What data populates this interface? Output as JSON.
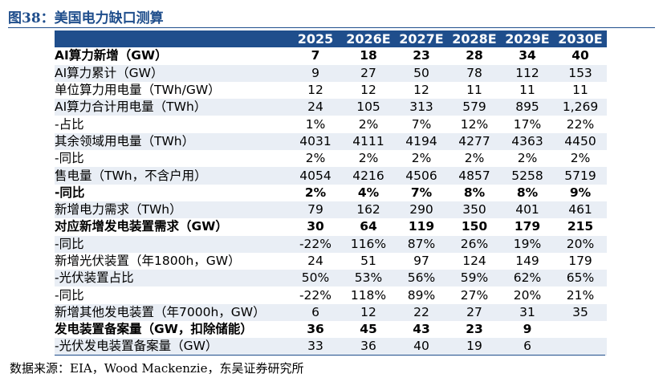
{
  "title": "图38：美国电力缺口测算",
  "years": [
    "2025",
    "2026E",
    "2027E",
    "2028E",
    "2029E",
    "2030E"
  ],
  "rows": [
    {
      "label": "AI算力新增（GW）",
      "bold": true,
      "values": [
        "7",
        "18",
        "23",
        "28",
        "34",
        "40"
      ]
    },
    {
      "label": "AI算力累计（GW）",
      "bold": false,
      "values": [
        "9",
        "27",
        "50",
        "78",
        "112",
        "153"
      ]
    },
    {
      "label": "单位算力用电量（TWh/GW）",
      "bold": false,
      "values": [
        "12",
        "12",
        "12",
        "11",
        "11",
        "11"
      ]
    },
    {
      "label": "AI算力合计用电量（TWh）",
      "bold": false,
      "values": [
        "24",
        "105",
        "313",
        "579",
        "895",
        "1,269"
      ]
    },
    {
      "label": "-占比",
      "bold": false,
      "values": [
        "1%",
        "2%",
        "7%",
        "12%",
        "17%",
        "22%"
      ]
    },
    {
      "label": "其余领域用电量（TWh）",
      "bold": false,
      "values": [
        "4031",
        "4111",
        "4194",
        "4277",
        "4363",
        "4450"
      ]
    },
    {
      "label": "-同比",
      "bold": false,
      "values": [
        "2%",
        "2%",
        "2%",
        "2%",
        "2%",
        "2%"
      ]
    },
    {
      "label": "售电量（TWh，不含户用）",
      "bold": false,
      "values": [
        "4054",
        "4216",
        "4506",
        "4857",
        "5258",
        "5719"
      ]
    },
    {
      "label": "-同比",
      "bold": true,
      "values": [
        "2%",
        "4%",
        "7%",
        "8%",
        "8%",
        "9%"
      ]
    },
    {
      "label": "新增电力需求（TWh）",
      "bold": false,
      "values": [
        "79",
        "162",
        "290",
        "350",
        "401",
        "461"
      ]
    },
    {
      "label": "对应新增发电装置需求（GW）",
      "bold": true,
      "values": [
        "30",
        "64",
        "119",
        "150",
        "179",
        "215"
      ]
    },
    {
      "label": "-同比",
      "bold": false,
      "values": [
        "-22%",
        "116%",
        "87%",
        "26%",
        "19%",
        "20%"
      ]
    },
    {
      "label": "新增光伏装置（年1800h，GW）",
      "bold": false,
      "values": [
        "24",
        "51",
        "97",
        "124",
        "149",
        "179"
      ]
    },
    {
      "label": "-光伏装置占比",
      "bold": false,
      "values": [
        "50%",
        "53%",
        "56%",
        "59%",
        "62%",
        "65%"
      ]
    },
    {
      "label": "-同比",
      "bold": false,
      "values": [
        "-22%",
        "118%",
        "89%",
        "27%",
        "20%",
        "21%"
      ]
    },
    {
      "label": "新增其他发电装置（年7000h，GW）",
      "bold": false,
      "values": [
        "6",
        "12",
        "22",
        "27",
        "31",
        "35"
      ]
    },
    {
      "label": "发电装置备案量（GW，扣除储能）",
      "bold": true,
      "values": [
        "36",
        "45",
        "43",
        "23",
        "9",
        ""
      ]
    },
    {
      "label": "-光伏发电装置备案量（GW）",
      "bold": false,
      "values": [
        "33",
        "36",
        "40",
        "19",
        "6",
        ""
      ]
    }
  ],
  "source": "数据来源：EIA，Wood Mackenzie，东吴证券研究所"
}
